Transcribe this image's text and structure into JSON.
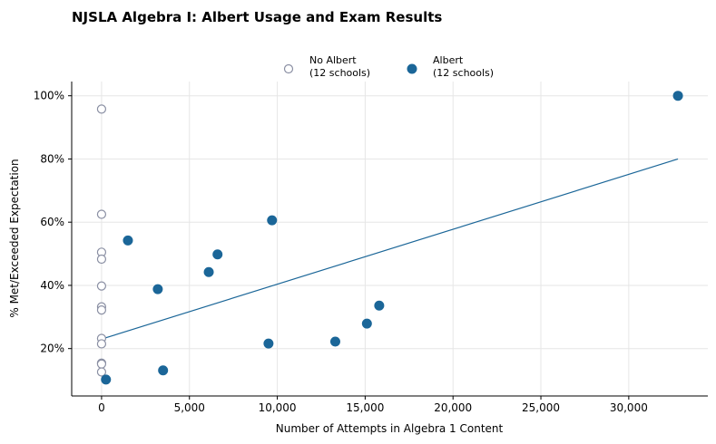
{
  "chart_data": {
    "type": "scatter",
    "title": "NJSLA Algebra I: Albert Usage and Exam Results",
    "xlabel": "Number of Attempts in Algebra 1 Content",
    "ylabel": "% Met/Exceeded Expectation",
    "xlim": [
      -1700,
      34500
    ],
    "ylim": [
      5,
      104.5
    ],
    "x_ticks": [
      0,
      5000,
      10000,
      15000,
      20000,
      25000,
      30000
    ],
    "x_tick_labels": [
      "0",
      "5,000",
      "10,000",
      "15,000",
      "20,000",
      "25,000",
      "30,000"
    ],
    "y_ticks": [
      20,
      40,
      60,
      80,
      100
    ],
    "y_tick_labels": [
      "20%",
      "40%",
      "60%",
      "80%",
      "100%"
    ],
    "grid": true,
    "legend_position": "top-center",
    "series": [
      {
        "name": "No Albert\n(12 schools)",
        "marker": "hollow-circle",
        "color": "#8a8fa3",
        "x": [
          0,
          0,
          0,
          0,
          0,
          0,
          0,
          0,
          0,
          0,
          0,
          0
        ],
        "y": [
          95.8,
          62.5,
          50.5,
          48.3,
          39.8,
          33.2,
          32.2,
          23.2,
          21.5,
          15.4,
          15.1,
          12.6
        ]
      },
      {
        "name": "Albert\n(12 schools)",
        "marker": "filled-circle",
        "color": "#1b6698",
        "x": [
          250,
          1500,
          3200,
          3500,
          6100,
          6600,
          9500,
          9700,
          13300,
          15100,
          15800,
          32800
        ],
        "y": [
          10.2,
          54.2,
          38.8,
          13.1,
          44.2,
          49.8,
          21.6,
          60.6,
          22.2,
          27.9,
          33.6,
          100
        ]
      }
    ],
    "trendline": {
      "color": "#1b6698",
      "x": [
        0,
        32800
      ],
      "y": [
        23,
        80
      ]
    }
  }
}
